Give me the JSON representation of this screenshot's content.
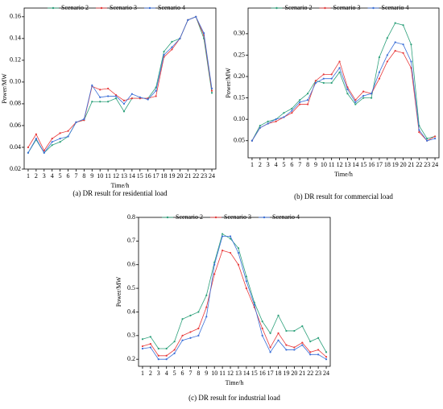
{
  "chart_data": [
    {
      "type": "line",
      "title": "(a) DR result for residential load",
      "xlabel": "Time/h",
      "ylabel": "Power/MW",
      "categories": [
        1,
        2,
        3,
        4,
        5,
        6,
        7,
        8,
        9,
        10,
        11,
        12,
        13,
        14,
        15,
        16,
        17,
        18,
        19,
        20,
        21,
        22,
        23,
        24
      ],
      "ylim": [
        0.02,
        0.168
      ],
      "yticks": [
        0.02,
        0.04,
        0.06,
        0.08,
        {
          "value": 0.1,
          "label": "0.10"
        },
        0.12,
        0.14,
        0.16
      ],
      "series": [
        {
          "name": "Scenario 2",
          "color": "#2ca07a",
          "values": [
            0.035,
            0.047,
            0.035,
            0.042,
            0.045,
            0.05,
            0.063,
            0.065,
            0.082,
            0.082,
            0.082,
            0.085,
            0.073,
            0.085,
            0.085,
            0.085,
            0.095,
            0.128,
            0.137,
            0.14,
            0.157,
            0.16,
            0.14,
            0.09
          ]
        },
        {
          "name": "Scenario 3",
          "color": "#e8393a",
          "values": [
            0.04,
            0.052,
            0.037,
            0.048,
            0.053,
            0.055,
            0.063,
            0.065,
            0.096,
            0.093,
            0.094,
            0.088,
            0.083,
            0.085,
            0.085,
            0.085,
            0.087,
            0.123,
            0.13,
            0.14,
            0.157,
            0.16,
            0.143,
            0.092
          ]
        },
        {
          "name": "Scenario 4",
          "color": "#3a6fd8",
          "values": [
            0.035,
            0.048,
            0.035,
            0.045,
            0.048,
            0.05,
            0.063,
            0.066,
            0.097,
            0.086,
            0.087,
            0.087,
            0.08,
            0.089,
            0.086,
            0.084,
            0.092,
            0.125,
            0.132,
            0.14,
            0.157,
            0.16,
            0.145,
            0.094
          ]
        }
      ]
    },
    {
      "type": "line",
      "title": "(b) DR result for commercial load",
      "xlabel": "Time/h",
      "ylabel": "Power/MW",
      "categories": [
        1,
        2,
        3,
        4,
        5,
        6,
        7,
        8,
        9,
        10,
        11,
        12,
        13,
        14,
        15,
        16,
        17,
        18,
        19,
        20,
        21,
        22,
        23,
        24
      ],
      "ylim": [
        0.01,
        0.36
      ],
      "yticks": [
        0.05,
        {
          "value": 0.1,
          "label": "0.10"
        },
        0.15,
        {
          "value": 0.2,
          "label": "0.20"
        },
        0.25,
        {
          "value": 0.3,
          "label": "0.30"
        }
      ],
      "series": [
        {
          "name": "Scenario 2",
          "color": "#2ca07a",
          "values": [
            0.05,
            0.085,
            0.095,
            0.1,
            0.115,
            0.125,
            0.145,
            0.16,
            0.19,
            0.185,
            0.185,
            0.21,
            0.16,
            0.135,
            0.15,
            0.15,
            0.245,
            0.29,
            0.325,
            0.32,
            0.275,
            0.085,
            0.055,
            0.06
          ]
        },
        {
          "name": "Scenario 3",
          "color": "#e8393a",
          "values": [
            0.05,
            0.08,
            0.09,
            0.095,
            0.105,
            0.115,
            0.135,
            0.135,
            0.19,
            0.205,
            0.205,
            0.235,
            0.175,
            0.145,
            0.165,
            0.16,
            0.195,
            0.235,
            0.26,
            0.255,
            0.22,
            0.07,
            0.05,
            0.06
          ]
        },
        {
          "name": "Scenario 4",
          "color": "#3a6fd8",
          "values": [
            0.05,
            0.08,
            0.09,
            0.1,
            0.105,
            0.12,
            0.14,
            0.145,
            0.185,
            0.195,
            0.195,
            0.22,
            0.17,
            0.14,
            0.155,
            0.16,
            0.21,
            0.25,
            0.28,
            0.275,
            0.235,
            0.075,
            0.05,
            0.055
          ]
        }
      ]
    },
    {
      "type": "line",
      "title": "(c) DR result for industrial load",
      "xlabel": "Time/h",
      "ylabel": "Power/MW",
      "categories": [
        1,
        2,
        3,
        4,
        5,
        6,
        7,
        8,
        9,
        10,
        11,
        12,
        13,
        14,
        15,
        16,
        17,
        18,
        19,
        20,
        21,
        22,
        23,
        24
      ],
      "ylim": [
        0.17,
        0.8
      ],
      "yticks": [
        0.2,
        0.3,
        0.4,
        0.5,
        0.6,
        0.7,
        0.8
      ],
      "series": [
        {
          "name": "Scenario 2",
          "color": "#2ca07a",
          "values": [
            0.285,
            0.295,
            0.245,
            0.245,
            0.275,
            0.37,
            0.385,
            0.4,
            0.47,
            0.61,
            0.73,
            0.71,
            0.67,
            0.55,
            0.44,
            0.36,
            0.31,
            0.385,
            0.32,
            0.32,
            0.34,
            0.275,
            0.29,
            0.23
          ]
        },
        {
          "name": "Scenario 3",
          "color": "#e8393a",
          "values": [
            0.255,
            0.265,
            0.215,
            0.215,
            0.24,
            0.3,
            0.315,
            0.33,
            0.42,
            0.56,
            0.66,
            0.65,
            0.6,
            0.5,
            0.42,
            0.33,
            0.25,
            0.31,
            0.26,
            0.25,
            0.27,
            0.23,
            0.24,
            0.21
          ]
        },
        {
          "name": "Scenario 4",
          "color": "#3a6fd8",
          "values": [
            0.245,
            0.25,
            0.2,
            0.2,
            0.225,
            0.28,
            0.29,
            0.3,
            0.38,
            0.6,
            0.72,
            0.72,
            0.65,
            0.53,
            0.43,
            0.3,
            0.23,
            0.28,
            0.24,
            0.24,
            0.26,
            0.22,
            0.22,
            0.2
          ]
        }
      ]
    }
  ]
}
